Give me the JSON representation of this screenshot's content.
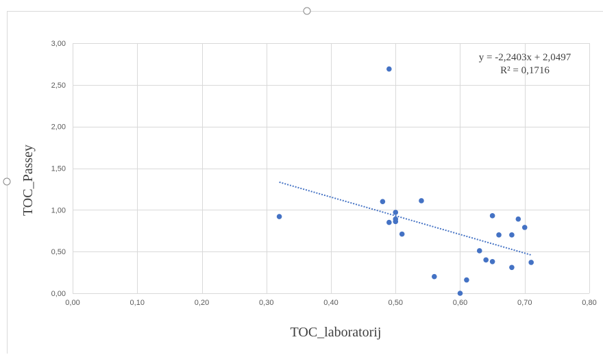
{
  "chart_data": {
    "type": "scatter",
    "title": "",
    "xlabel": "TOC_laboratorij",
    "ylabel": "TOC_Passey",
    "xlim": [
      0,
      0.8
    ],
    "ylim": [
      0,
      3
    ],
    "x_ticks": [
      "0,00",
      "0,10",
      "0,20",
      "0,30",
      "0,40",
      "0,50",
      "0,60",
      "0,70",
      "0,80"
    ],
    "y_ticks": [
      "0,00",
      "0,50",
      "1,00",
      "1,50",
      "2,00",
      "2,50",
      "3,00"
    ],
    "x_tick_values": [
      0,
      0.1,
      0.2,
      0.3,
      0.4,
      0.5,
      0.6,
      0.7,
      0.8
    ],
    "y_tick_values": [
      0,
      0.5,
      1.0,
      1.5,
      2.0,
      2.5,
      3.0
    ],
    "grid": true,
    "legend": "none",
    "point_color": "#4472c4",
    "trendline_color": "#4472c4",
    "points": [
      {
        "x": 0.32,
        "y": 0.92
      },
      {
        "x": 0.48,
        "y": 1.1
      },
      {
        "x": 0.49,
        "y": 2.69
      },
      {
        "x": 0.49,
        "y": 0.85
      },
      {
        "x": 0.5,
        "y": 0.97
      },
      {
        "x": 0.5,
        "y": 0.89
      },
      {
        "x": 0.5,
        "y": 0.86
      },
      {
        "x": 0.51,
        "y": 0.71
      },
      {
        "x": 0.54,
        "y": 1.11
      },
      {
        "x": 0.56,
        "y": 0.2
      },
      {
        "x": 0.6,
        "y": 0.0
      },
      {
        "x": 0.61,
        "y": 0.16
      },
      {
        "x": 0.63,
        "y": 0.51
      },
      {
        "x": 0.64,
        "y": 0.4
      },
      {
        "x": 0.65,
        "y": 0.93
      },
      {
        "x": 0.65,
        "y": 0.38
      },
      {
        "x": 0.66,
        "y": 0.7
      },
      {
        "x": 0.68,
        "y": 0.7
      },
      {
        "x": 0.68,
        "y": 0.31
      },
      {
        "x": 0.69,
        "y": 0.89
      },
      {
        "x": 0.7,
        "y": 0.79
      },
      {
        "x": 0.71,
        "y": 0.37
      }
    ],
    "trendline": {
      "slope": -2.2403,
      "intercept": 2.0497,
      "x_range": [
        0.32,
        0.71
      ],
      "equation": "y = -2,2403x + 2,0497",
      "r_squared": "R² = 0,1716"
    }
  }
}
